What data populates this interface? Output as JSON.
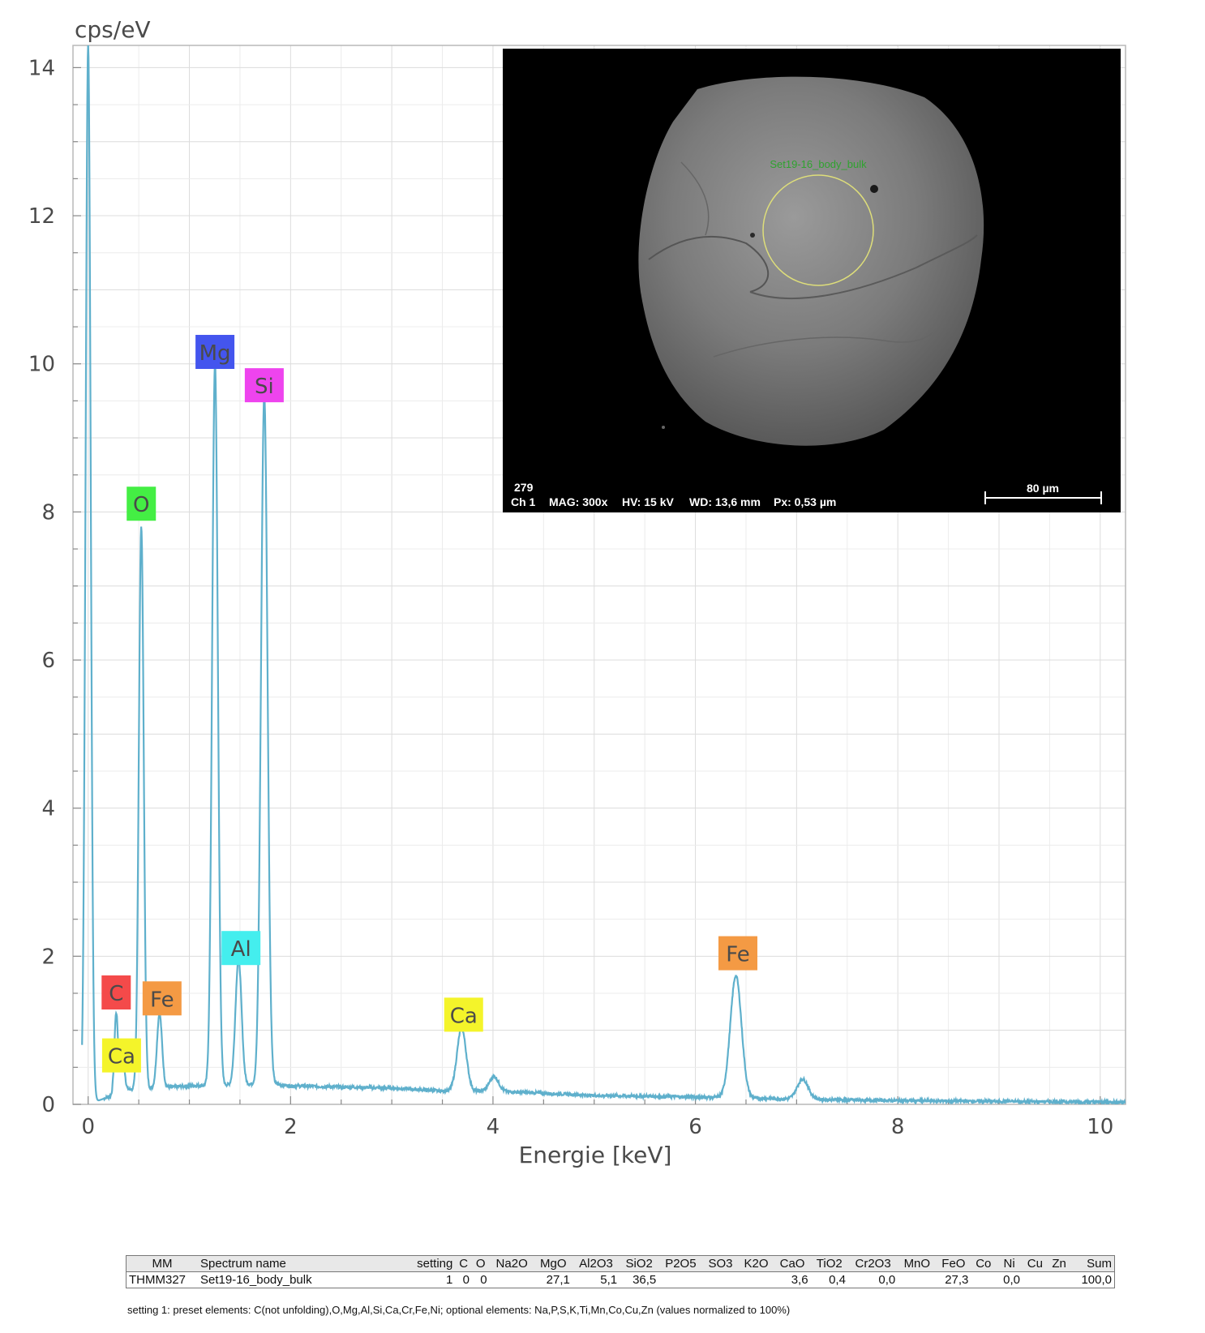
{
  "chart_data": {
    "type": "line",
    "ylabel": "cps/eV",
    "xlabel": "Energie [keV]",
    "xlim": [
      -0.15,
      10.25
    ],
    "ylim": [
      0,
      14.3
    ],
    "xticks": [
      0,
      2,
      4,
      6,
      8,
      10
    ],
    "yticks": [
      0,
      2,
      4,
      6,
      8,
      10,
      12,
      14
    ],
    "grid": true,
    "series_color": "#5fb0cc",
    "spectrum": {
      "baseline": [
        [
          0.1,
          0.05
        ],
        [
          0.4,
          0.2
        ],
        [
          1.0,
          0.25
        ],
        [
          1.8,
          0.28
        ],
        [
          2.0,
          0.25
        ],
        [
          3.0,
          0.22
        ],
        [
          3.5,
          0.18
        ],
        [
          4.0,
          0.18
        ],
        [
          5.0,
          0.12
        ],
        [
          6.0,
          0.1
        ],
        [
          7.0,
          0.07
        ],
        [
          8.0,
          0.05
        ],
        [
          9.0,
          0.04
        ],
        [
          10.25,
          0.03
        ]
      ],
      "noise_peak": {
        "x": 0.0,
        "y": 14.3,
        "sigma": 0.025
      },
      "peaks": [
        {
          "element": "C",
          "x": 0.277,
          "y": 1.1,
          "sigma": 0.018
        },
        {
          "element": "Ca",
          "x": 0.341,
          "y": 0.45,
          "sigma": 0.02
        },
        {
          "element": "O",
          "x": 0.525,
          "y": 7.6,
          "sigma": 0.024
        },
        {
          "element": "Fe",
          "x": 0.705,
          "y": 1.0,
          "sigma": 0.025
        },
        {
          "element": "Mg",
          "x": 1.253,
          "y": 9.75,
          "sigma": 0.028
        },
        {
          "element": "Al",
          "x": 1.486,
          "y": 1.7,
          "sigma": 0.03
        },
        {
          "element": "Si",
          "x": 1.74,
          "y": 9.3,
          "sigma": 0.032
        },
        {
          "element": "Ca",
          "x": 3.69,
          "y": 0.85,
          "sigma": 0.045
        },
        {
          "element": "Ca",
          "x": 4.01,
          "y": 0.2,
          "sigma": 0.045
        },
        {
          "element": "Fe",
          "x": 6.4,
          "y": 1.65,
          "sigma": 0.055
        },
        {
          "element": "Fe",
          "x": 7.06,
          "y": 0.27,
          "sigma": 0.055
        }
      ]
    },
    "annotations": [
      {
        "text": "C",
        "x": 0.277,
        "y": 1.5,
        "color": "#f44a4a"
      },
      {
        "text": "Ca",
        "x": 0.33,
        "y": 0.65,
        "color": "#f4f42a"
      },
      {
        "text": "O",
        "x": 0.525,
        "y": 8.1,
        "color": "#44ee44"
      },
      {
        "text": "Fe",
        "x": 0.73,
        "y": 1.42,
        "color": "#f49a44"
      },
      {
        "text": "Mg",
        "x": 1.253,
        "y": 10.15,
        "color": "#4455ee"
      },
      {
        "text": "Si",
        "x": 1.74,
        "y": 9.7,
        "color": "#ee44ee"
      },
      {
        "text": "Al",
        "x": 1.51,
        "y": 2.1,
        "color": "#44eeee"
      },
      {
        "text": "Ca",
        "x": 3.71,
        "y": 1.2,
        "color": "#f4f42a"
      },
      {
        "text": "Fe",
        "x": 6.42,
        "y": 2.03,
        "color": "#f49a44"
      }
    ]
  },
  "sem_image": {
    "region_label": "Set19-16_body_bulk",
    "footer_id": "279",
    "footer_ch": "Ch 1",
    "footer_mag": "MAG: 300x",
    "footer_hv": "HV: 15 kV",
    "footer_wd": "WD: 13,6 mm",
    "footer_px": "Px: 0,53 µm",
    "scalebar_label": "80 µm"
  },
  "table": {
    "headers": {
      "mm": "MM",
      "spectrum": "Spectrum name",
      "setting": "setting",
      "c": "C",
      "o": "O",
      "na2o": "Na2O",
      "mgo": "MgO",
      "al2o3": "Al2O3",
      "sio2": "SiO2",
      "p2o5": "P2O5",
      "so3": "SO3",
      "k2o": "K2O",
      "cao": "CaO",
      "tio2": "TiO2",
      "cr2o3": "Cr2O3",
      "mno": "MnO",
      "feo": "FeO",
      "co": "Co",
      "ni": "Ni",
      "cu": "Cu",
      "zn": "Zn",
      "sum": "Sum"
    },
    "row": {
      "mm": "THMM327",
      "spectrum": "Set19-16_body_bulk",
      "setting": "1",
      "c": "0",
      "o": "0",
      "na2o": "",
      "mgo": "27,1",
      "al2o3": "5,1",
      "sio2": "36,5",
      "p2o5": "",
      "so3": "",
      "k2o": "",
      "cao": "3,6",
      "tio2": "0,4",
      "cr2o3": "0,0",
      "mno": "",
      "feo": "27,3",
      "co": "",
      "ni": "0,0",
      "cu": "",
      "zn": "",
      "sum": "100,0"
    },
    "note": "setting 1: preset elements: C(not unfolding),O,Mg,Al,Si,Ca,Cr,Fe,Ni; optional elements: Na,P,S,K,Ti,Mn,Co,Cu,Zn (values normalized to 100%)"
  }
}
